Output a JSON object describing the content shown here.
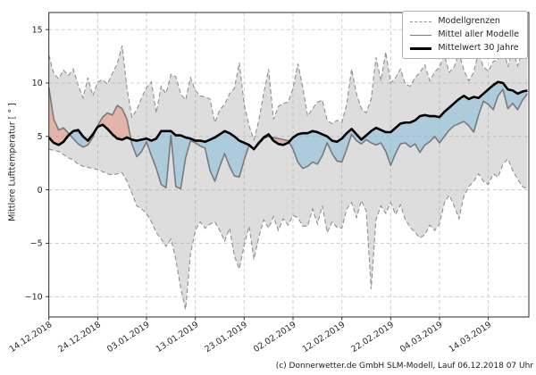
{
  "figure": {
    "y_axis_label": "Mittlere Lufttemperatur [ ° ]",
    "footer_credit": "(c) Donnerwetter.de GmbH SLM-Modell, Lauf 06.12.2018 07 Uhr"
  },
  "legend": {
    "position": "top-right",
    "items": [
      {
        "label": "Modellgrenzen",
        "style": "dashed-gray"
      },
      {
        "label": "Mittel aller Modelle",
        "style": "solid-gray"
      },
      {
        "label": "Mittelwert 30 Jahre",
        "style": "solid-black-thick"
      }
    ]
  },
  "colors": {
    "band_fill": "rgba(165,165,165,0.38)",
    "band_edge": "#8f8f8f",
    "model_mean_line": "#7a7a7a",
    "climate_mean_line": "#000000",
    "warm_fill": "rgba(233,141,115,0.50)",
    "cold_fill": "rgba(132,190,222,0.55)",
    "grid": "#c9c9c9",
    "spine": "#2b2b2b",
    "tick_text": "#262626"
  },
  "chart_data": {
    "type": "line",
    "title": "",
    "xlabel": "",
    "ylabel": "Mittlere Lufttemperatur [ ° ]",
    "grid": true,
    "legend_position": "top-right",
    "x_start_date": "14.12.2018",
    "x_unit": "days since 14.12.2018",
    "xlim": [
      0,
      98.3
    ],
    "ylim": [
      -11.9,
      16.6
    ],
    "x_tick_days": [
      0,
      10,
      20,
      30,
      40,
      50,
      60,
      70,
      80,
      90
    ],
    "x_tick_labels": [
      "14.12.2018",
      "24.12.2018",
      "03.01.2019",
      "13.01.2019",
      "23.01.2019",
      "02.02.2019",
      "12.02.2019",
      "22.02.2019",
      "04.03.2019",
      "14.03.2019"
    ],
    "y_ticks": [
      15,
      10,
      5,
      0,
      -5,
      -10
    ],
    "y_tick_labels": [
      "15",
      "10",
      "5",
      "0",
      "−5",
      "−10"
    ],
    "fills": [
      {
        "name": "Modellgrenzen-Band",
        "between": [
          "Modellgrenzen obere Grenze",
          "Modellgrenzen untere Grenze"
        ],
        "color_key": "band_fill"
      },
      {
        "name": "waermer als Mittel (rot)",
        "condition": "Mittel aller Modelle > Mittelwert 30 Jahre",
        "color_key": "warm_fill"
      },
      {
        "name": "kaelter als Mittel (blau)",
        "condition": "Mittel aller Modelle < Mittelwert 30 Jahre",
        "color_key": "cold_fill"
      }
    ],
    "series": [
      {
        "name": "Modellgrenzen obere Grenze",
        "style": "dashed",
        "values": [
          12.6,
          10.9,
          10.4,
          11.2,
          10.7,
          11.3,
          9.8,
          8.6,
          10.5,
          8.8,
          10.1,
          10.3,
          9.9,
          10.9,
          11.8,
          13.5,
          9.5,
          6.8,
          7.5,
          8.6,
          9.6,
          10.1,
          7.2,
          9.7,
          9.0,
          10.8,
          10.6,
          9.0,
          8.4,
          10.5,
          9.3,
          8.8,
          8.7,
          8.5,
          6.3,
          7.5,
          8.0,
          9.0,
          9.5,
          11.9,
          8.0,
          6.0,
          4.7,
          6.5,
          9.0,
          11.3,
          6.6,
          7.8,
          8.1,
          8.2,
          9.5,
          11.8,
          9.6,
          6.9,
          7.6,
          8.2,
          8.4,
          6.5,
          6.2,
          6.5,
          6.3,
          8.0,
          11.3,
          9.0,
          7.6,
          7.2,
          8.5,
          12.4,
          10.2,
          12.9,
          10.0,
          10.5,
          11.3,
          9.9,
          9.7,
          10.5,
          11.0,
          11.7,
          10.2,
          11.0,
          11.5,
          12.6,
          11.0,
          11.5,
          12.8,
          11.2,
          10.2,
          11.0,
          12.9,
          11.5,
          11.1,
          12.0,
          12.2,
          13.5,
          11.5,
          13.2,
          11.6,
          13.0,
          12.4
        ]
      },
      {
        "name": "Modellgrenzen untere Grenze",
        "style": "dashed",
        "values": [
          3.8,
          3.7,
          3.6,
          3.3,
          3.0,
          2.8,
          2.4,
          2.2,
          2.1,
          2.0,
          1.9,
          1.7,
          1.5,
          1.4,
          1.5,
          1.6,
          0.8,
          -0.3,
          -1.5,
          -1.8,
          -2.2,
          -3.0,
          -4.0,
          -4.6,
          -5.3,
          -4.6,
          -6.5,
          -9.2,
          -11.2,
          -6.0,
          -3.8,
          -3.0,
          -3.6,
          -3.2,
          -3.0,
          -3.8,
          -4.8,
          -3.6,
          -6.2,
          -7.4,
          -5.2,
          -3.4,
          -6.5,
          -4.4,
          -2.8,
          -3.6,
          -2.5,
          -3.8,
          -2.7,
          -3.3,
          -2.4,
          -2.6,
          -3.4,
          -3.4,
          -1.8,
          -3.2,
          -1.5,
          -4.0,
          -3.0,
          -3.5,
          -3.6,
          -1.8,
          -1.2,
          -2.6,
          -1.0,
          -2.0,
          -9.3,
          -2.8,
          -1.5,
          -2.2,
          -1.2,
          -2.3,
          -1.4,
          -2.8,
          -3.5,
          -4.0,
          -4.5,
          -4.2,
          -3.3,
          -3.8,
          -3.2,
          -1.2,
          -0.5,
          -1.5,
          -2.7,
          -0.6,
          0.3,
          0.8,
          1.5,
          0.8,
          0.5,
          1.5,
          1.2,
          2.4,
          2.9,
          1.8,
          1.0,
          0.3,
          0.1
        ]
      },
      {
        "name": "Mittel aller Modelle",
        "style": "solid",
        "values": [
          9.6,
          6.6,
          5.6,
          5.8,
          5.3,
          4.8,
          4.3,
          4.0,
          4.2,
          4.9,
          6.0,
          6.8,
          7.2,
          7.0,
          7.9,
          7.6,
          6.6,
          4.3,
          3.1,
          3.6,
          4.5,
          3.2,
          2.0,
          0.5,
          0.2,
          5.1,
          0.3,
          0.1,
          3.0,
          4.6,
          4.4,
          4.1,
          3.9,
          1.8,
          0.8,
          2.2,
          3.4,
          2.2,
          1.3,
          1.2,
          2.8,
          4.2,
          3.8,
          4.3,
          4.8,
          5.0,
          4.9,
          4.8,
          4.7,
          4.6,
          3.8,
          2.6,
          2.0,
          2.2,
          2.6,
          2.4,
          3.2,
          4.4,
          3.4,
          2.7,
          2.6,
          3.8,
          5.2,
          4.6,
          4.3,
          4.7,
          4.4,
          4.2,
          4.4,
          3.6,
          2.3,
          3.4,
          4.3,
          4.4,
          4.0,
          4.3,
          3.5,
          4.2,
          4.5,
          5.0,
          4.4,
          5.0,
          5.6,
          6.0,
          6.2,
          6.4,
          6.0,
          5.4,
          7.0,
          8.3,
          8.0,
          7.5,
          8.8,
          9.4,
          7.6,
          8.1,
          7.5,
          8.4,
          9.0
        ]
      },
      {
        "name": "Mittelwert 30 Jahre",
        "style": "solid-thick",
        "values": [
          4.9,
          4.4,
          4.2,
          4.5,
          5.1,
          5.5,
          5.6,
          5.0,
          4.6,
          5.2,
          5.9,
          6.1,
          5.7,
          5.2,
          4.8,
          4.7,
          4.9,
          4.7,
          4.6,
          4.7,
          4.8,
          4.6,
          4.8,
          5.5,
          5.5,
          5.5,
          5.1,
          5.1,
          4.9,
          4.8,
          4.6,
          4.6,
          4.5,
          4.7,
          4.9,
          5.2,
          5.5,
          5.3,
          5.0,
          4.6,
          4.4,
          4.2,
          3.8,
          4.4,
          4.9,
          5.2,
          4.6,
          4.3,
          4.2,
          4.4,
          4.9,
          5.2,
          5.3,
          5.3,
          5.5,
          5.4,
          5.2,
          5.0,
          4.6,
          4.5,
          4.8,
          5.3,
          5.7,
          5.2,
          4.7,
          5.1,
          5.5,
          5.8,
          5.6,
          5.4,
          5.4,
          5.8,
          6.2,
          6.3,
          6.3,
          6.5,
          6.9,
          7.0,
          6.9,
          6.9,
          6.8,
          7.3,
          7.7,
          8.1,
          8.5,
          8.8,
          8.5,
          8.7,
          8.6,
          9.0,
          9.4,
          9.8,
          10.1,
          10.0,
          9.4,
          9.3,
          9.0,
          9.2,
          9.3
        ]
      }
    ]
  }
}
